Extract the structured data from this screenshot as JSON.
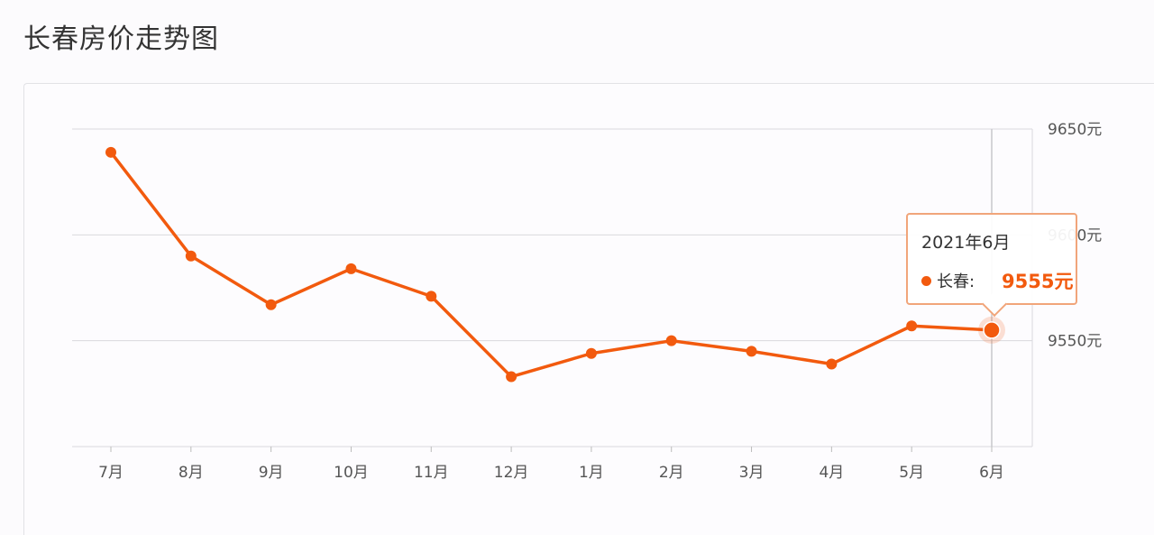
{
  "page": {
    "title": "长春房价走势图"
  },
  "colors": {
    "series": "#f25a0e",
    "grid": "#d9d9dd",
    "crosshair": "#c8c8cc"
  },
  "chart_data": {
    "type": "line",
    "categories": [
      "7月",
      "8月",
      "9月",
      "10月",
      "11月",
      "12月",
      "1月",
      "2月",
      "3月",
      "4月",
      "5月",
      "6月"
    ],
    "series": [
      {
        "name": "长春",
        "values": [
          9639,
          9590,
          9567,
          9584,
          9571,
          9533,
          9544,
          9550,
          9545,
          9539,
          9557,
          9555
        ]
      }
    ],
    "y_ticks": [
      "9650元",
      "9600元",
      "9550元"
    ],
    "ylim": [
      9500,
      9650
    ],
    "y_axis_position": "right",
    "grid": true,
    "highlighted_index": 11
  },
  "tooltip": {
    "title": "2021年6月",
    "series_label": "长春:",
    "value": "9555元"
  }
}
